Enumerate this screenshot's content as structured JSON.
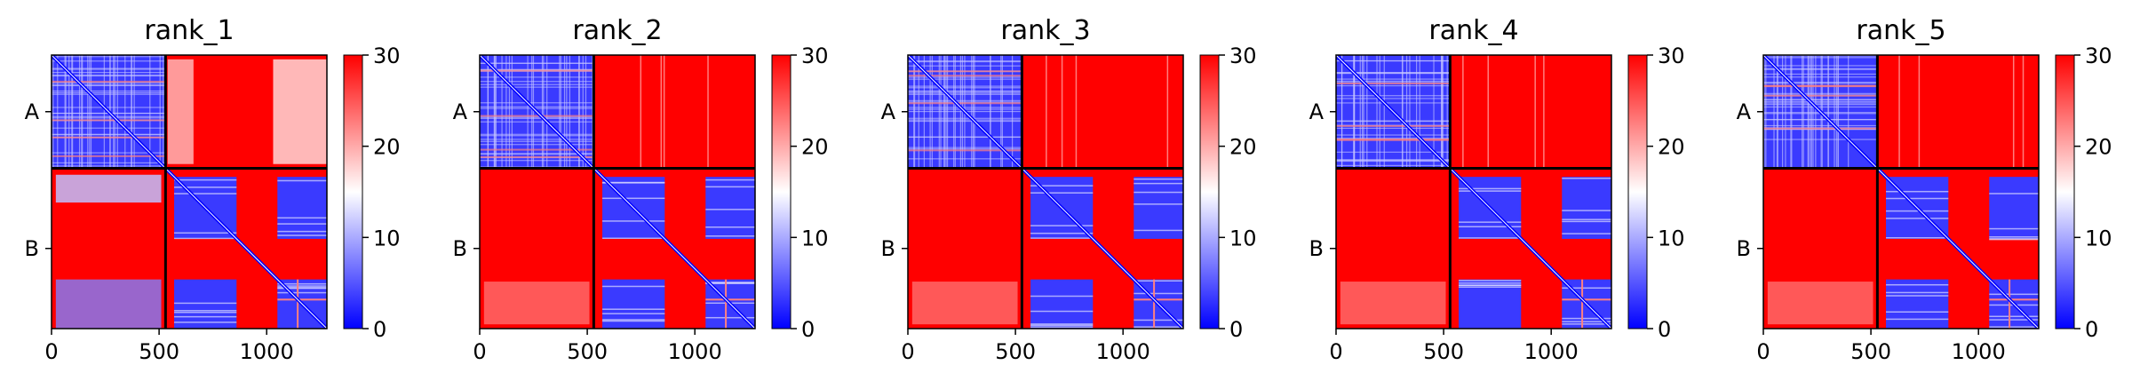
{
  "chart_data": [
    {
      "type": "heatmap",
      "title": "rank_1",
      "x_ticks": [
        "0",
        "500",
        "1000"
      ],
      "x_tick_values": [
        0,
        500,
        1000
      ],
      "y_ticks": [
        "A",
        "B"
      ],
      "chain_boundary": 530,
      "total_residues": 1280,
      "colorbar": {
        "ticks": [
          "0",
          "10",
          "20",
          "30"
        ],
        "tick_values": [
          0,
          10,
          20,
          30
        ],
        "range": [
          0,
          30
        ],
        "colormap": "bwr"
      },
      "variant": 1
    },
    {
      "type": "heatmap",
      "title": "rank_2",
      "x_ticks": [
        "0",
        "500",
        "1000"
      ],
      "x_tick_values": [
        0,
        500,
        1000
      ],
      "y_ticks": [
        "A",
        "B"
      ],
      "chain_boundary": 530,
      "total_residues": 1280,
      "colorbar": {
        "ticks": [
          "0",
          "10",
          "20",
          "30"
        ],
        "tick_values": [
          0,
          10,
          20,
          30
        ],
        "range": [
          0,
          30
        ],
        "colormap": "bwr"
      },
      "variant": 2
    },
    {
      "type": "heatmap",
      "title": "rank_3",
      "x_ticks": [
        "0",
        "500",
        "1000"
      ],
      "x_tick_values": [
        0,
        500,
        1000
      ],
      "y_ticks": [
        "A",
        "B"
      ],
      "chain_boundary": 530,
      "total_residues": 1280,
      "colorbar": {
        "ticks": [
          "0",
          "10",
          "20",
          "30"
        ],
        "tick_values": [
          0,
          10,
          20,
          30
        ],
        "range": [
          0,
          30
        ],
        "colormap": "bwr"
      },
      "variant": 3
    },
    {
      "type": "heatmap",
      "title": "rank_4",
      "x_ticks": [
        "0",
        "500",
        "1000"
      ],
      "x_tick_values": [
        0,
        500,
        1000
      ],
      "y_ticks": [
        "A",
        "B"
      ],
      "chain_boundary": 530,
      "total_residues": 1280,
      "colorbar": {
        "ticks": [
          "0",
          "10",
          "20",
          "30"
        ],
        "tick_values": [
          0,
          10,
          20,
          30
        ],
        "range": [
          0,
          30
        ],
        "colormap": "bwr"
      },
      "variant": 4
    },
    {
      "type": "heatmap",
      "title": "rank_5",
      "x_ticks": [
        "0",
        "500",
        "1000"
      ],
      "x_tick_values": [
        0,
        500,
        1000
      ],
      "y_ticks": [
        "A",
        "B"
      ],
      "chain_boundary": 530,
      "total_residues": 1280,
      "colorbar": {
        "ticks": [
          "0",
          "10",
          "20",
          "30"
        ],
        "tick_values": [
          0,
          10,
          20,
          30
        ],
        "range": [
          0,
          30
        ],
        "colormap": "bwr"
      },
      "variant": 5
    }
  ],
  "colors": {
    "low": "#0000ff",
    "mid": "#ffffff",
    "high": "#ff0000",
    "frame": "#000000"
  }
}
